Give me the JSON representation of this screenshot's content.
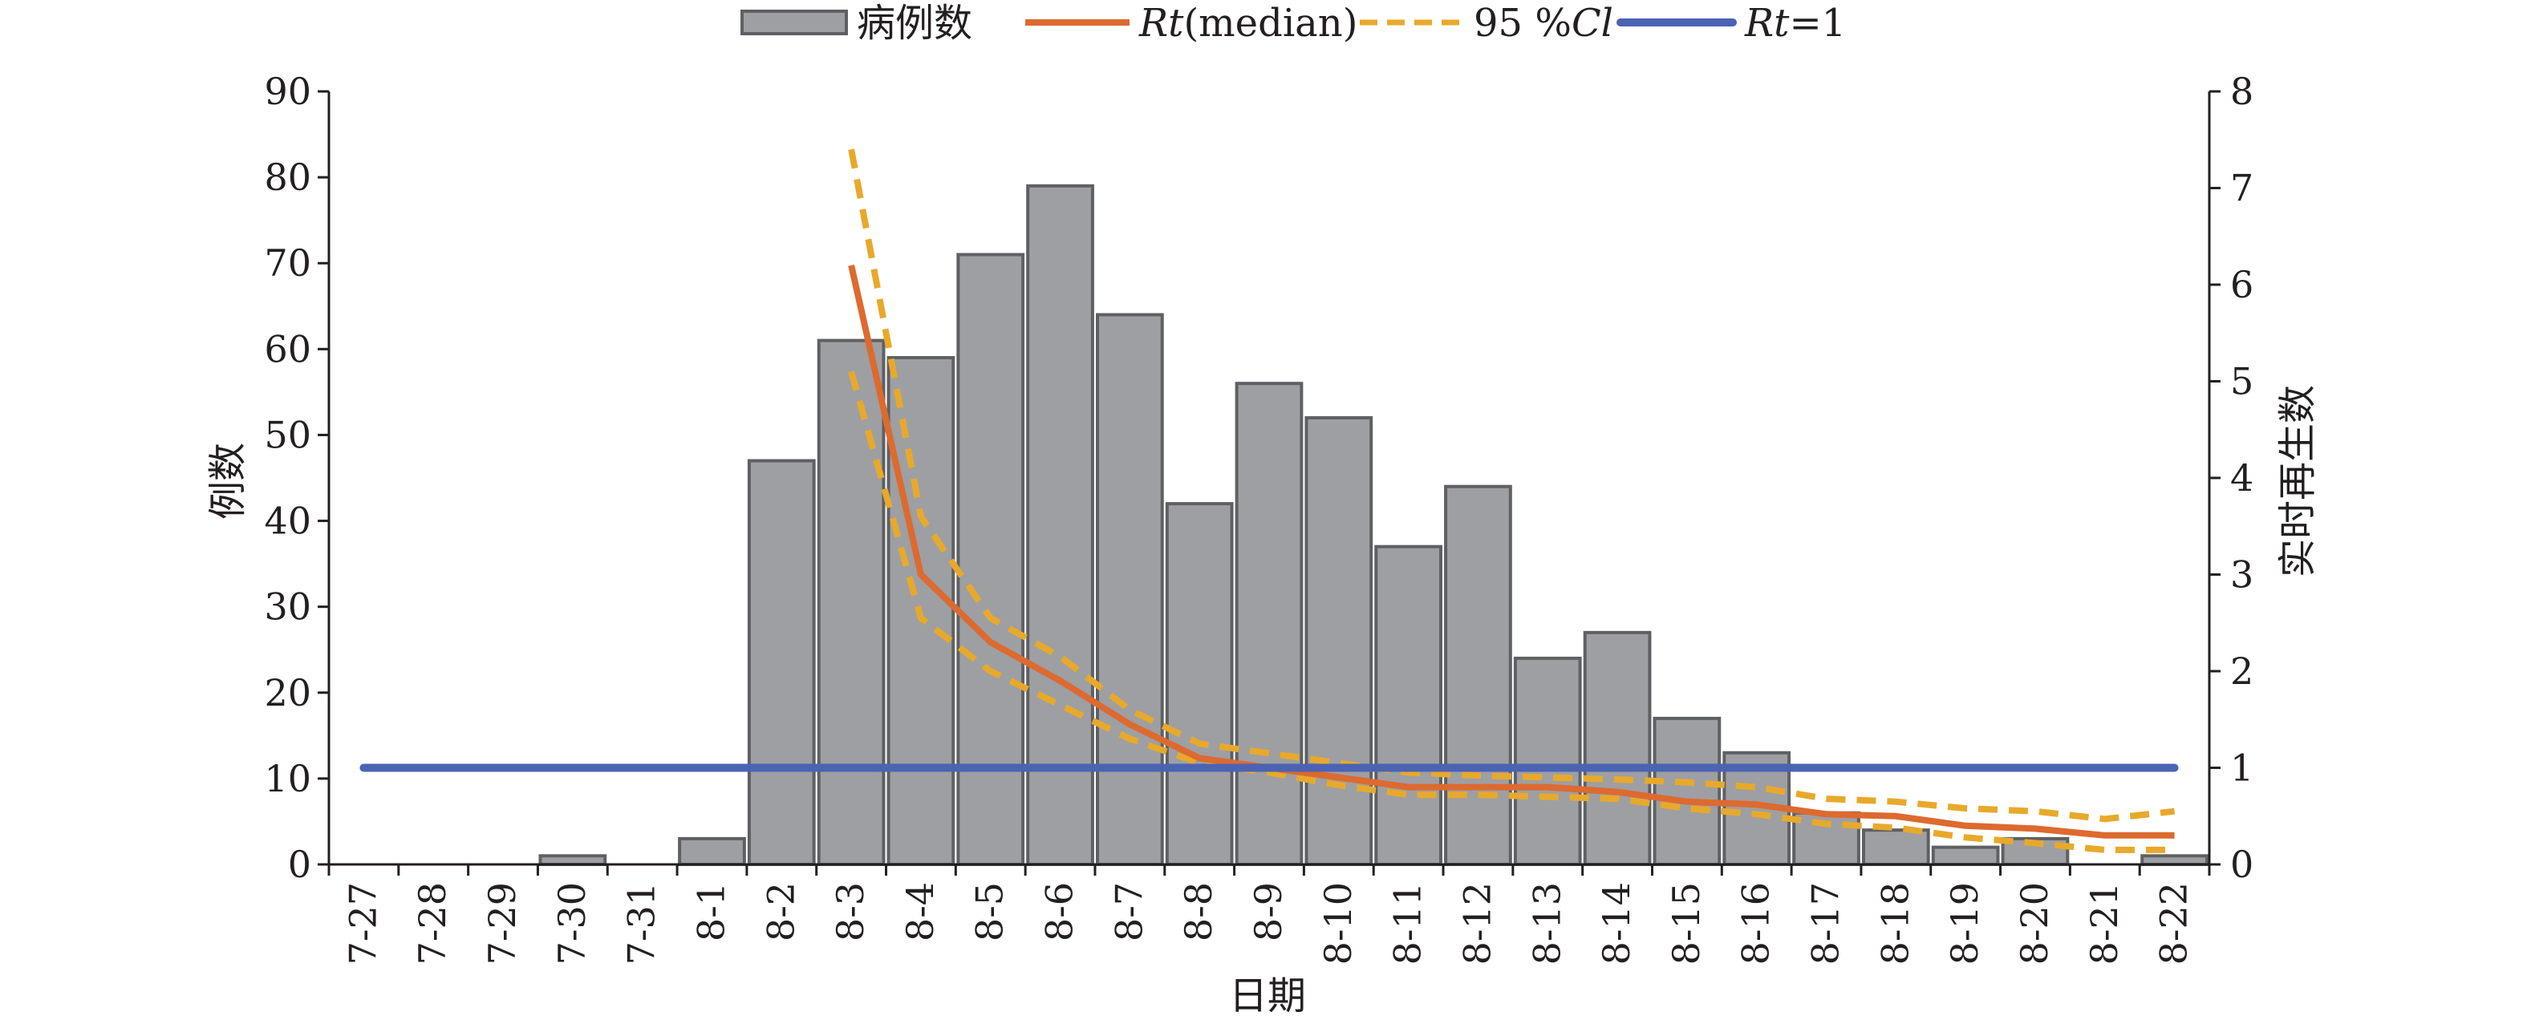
{
  "chart_data": {
    "type": "bar",
    "categories": [
      "7-27",
      "7-28",
      "7-29",
      "7-30",
      "7-31",
      "8-1",
      "8-2",
      "8-3",
      "8-4",
      "8-5",
      "8-6",
      "8-7",
      "8-8",
      "8-9",
      "8-10",
      "8-11",
      "8-12",
      "8-13",
      "8-14",
      "8-15",
      "8-16",
      "8-17",
      "8-18",
      "8-19",
      "8-20",
      "8-21",
      "8-22"
    ],
    "xlabel": "日期",
    "ylabel_left": "例数",
    "ylabel_right": "实时再生数",
    "ylim_left": [
      0,
      90
    ],
    "yticks_left": [
      0,
      10,
      20,
      30,
      40,
      50,
      60,
      70,
      80,
      90
    ],
    "ylim_right": [
      0,
      8
    ],
    "yticks_right": [
      0,
      1,
      2,
      3,
      4,
      5,
      6,
      7,
      8
    ],
    "grid": false,
    "legend_position": "top",
    "series": [
      {
        "name": "病例数",
        "type": "bar",
        "axis": "left",
        "color": "#9d9fa3",
        "values": [
          0,
          0,
          0,
          1,
          0,
          3,
          47,
          61,
          59,
          71,
          79,
          64,
          42,
          56,
          52,
          37,
          44,
          24,
          27,
          17,
          13,
          6,
          4,
          2,
          3,
          0,
          1
        ]
      },
      {
        "name": "Rt(median)",
        "name_parts": [
          "Rt",
          "(median)"
        ],
        "type": "line",
        "axis": "right",
        "color": "#dd6a2f",
        "values": [
          null,
          null,
          null,
          null,
          null,
          null,
          null,
          6.2,
          3.0,
          2.3,
          1.9,
          1.45,
          1.1,
          1.0,
          0.9,
          0.8,
          0.8,
          0.8,
          0.75,
          0.65,
          0.62,
          0.52,
          0.5,
          0.4,
          0.37,
          0.3,
          0.3
        ]
      },
      {
        "name": "95 %Cl",
        "name_parts": [
          "95 %",
          "Cl"
        ],
        "type": "line",
        "dashed": true,
        "axis": "right",
        "color": "#e8a92b",
        "upper": [
          null,
          null,
          null,
          null,
          null,
          null,
          null,
          7.4,
          3.6,
          2.55,
          2.15,
          1.6,
          1.25,
          1.15,
          1.05,
          0.95,
          0.92,
          0.9,
          0.88,
          0.85,
          0.8,
          0.68,
          0.65,
          0.58,
          0.55,
          0.47,
          0.55
        ],
        "lower": [
          null,
          null,
          null,
          null,
          null,
          null,
          null,
          5.1,
          2.55,
          2.0,
          1.65,
          1.3,
          1.05,
          0.95,
          0.82,
          0.72,
          0.72,
          0.7,
          0.68,
          0.58,
          0.52,
          0.42,
          0.38,
          0.28,
          0.22,
          0.15,
          0.15
        ]
      },
      {
        "name": "Rt=1",
        "name_parts": [
          "Rt",
          "=1"
        ],
        "type": "line",
        "axis": "right",
        "color": "#4a63b3",
        "values": [
          1,
          1,
          1,
          1,
          1,
          1,
          1,
          1,
          1,
          1,
          1,
          1,
          1,
          1,
          1,
          1,
          1,
          1,
          1,
          1,
          1,
          1,
          1,
          1,
          1,
          1,
          1
        ]
      }
    ]
  }
}
